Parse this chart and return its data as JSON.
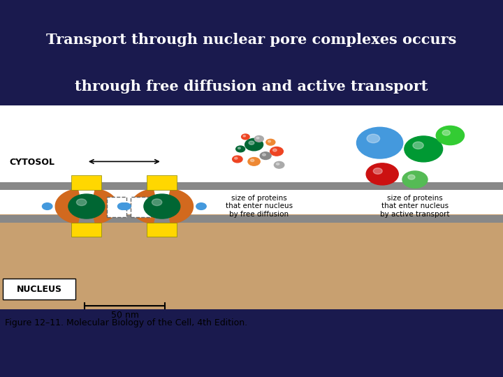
{
  "title_line1": "Transport through nuclear pore complexes occurs",
  "title_line2": "through free diffusion and active transport",
  "title_color": "#FFFFFF",
  "title_bg": "#0d0d2e",
  "diagram_bg": "#FFFFFF",
  "bottom_bg": "#3a3a9e",
  "figure_caption": "Figure 12–11. Molecular Biology of the Cell, 4th Edition.",
  "nucleus_color": "#c8a070",
  "cytosol_label": "CYTOSOL",
  "nucleus_label": "NUCLEUS",
  "membrane_color": "#888888",
  "orange_color": "#D2691E",
  "yellow_color": "#FFD700",
  "green_dark": "#006633",
  "blue_small": "#4499DD",
  "scale_bar_label": "50 nm",
  "free_diffusion_label": "size of proteins\nthat enter nucleus\nby free diffusion",
  "active_transport_label": "size of proteins\nthat enter nucleus\nby active transport",
  "small_spheres": [
    [
      5.05,
      4.85,
      0.18,
      "#006633"
    ],
    [
      5.5,
      4.65,
      0.13,
      "#ee4422"
    ],
    [
      5.05,
      4.35,
      0.12,
      "#ee8833"
    ],
    [
      5.55,
      4.25,
      0.1,
      "#AAAAAA"
    ],
    [
      4.72,
      4.42,
      0.1,
      "#ee4422"
    ],
    [
      5.15,
      5.02,
      0.09,
      "#AAAAAA"
    ],
    [
      5.38,
      4.92,
      0.09,
      "#ee8833"
    ],
    [
      4.78,
      4.72,
      0.09,
      "#006633"
    ],
    [
      4.88,
      5.08,
      0.08,
      "#ee4422"
    ],
    [
      5.28,
      4.52,
      0.11,
      "#888888"
    ]
  ],
  "large_spheres": [
    [
      7.55,
      4.9,
      0.46,
      "#4499DD"
    ],
    [
      8.42,
      4.72,
      0.38,
      "#009933"
    ],
    [
      8.95,
      5.12,
      0.28,
      "#33CC33"
    ],
    [
      7.6,
      3.98,
      0.32,
      "#CC1111"
    ],
    [
      8.25,
      3.82,
      0.25,
      "#55BB55"
    ]
  ]
}
